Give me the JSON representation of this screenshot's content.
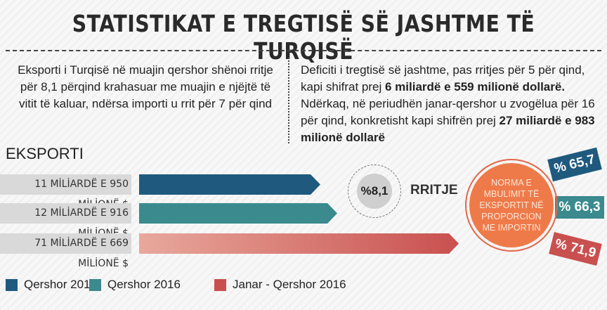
{
  "title": "STATISTIKAT E TREGTISË SË JASHTME TË TURQISË",
  "left_text": "Eksporti i Turqisë në muajin qershor shënoi rritje për 8,1 përqind krahasuar me muajin e njëjtë të vitit të kaluar, ndërsa importi u rrit për 7 për qind",
  "right_text": {
    "p1": "Deficiti i tregtisë së jashtme, pas rritjes për 5 për qind, kapi shifrat prej ",
    "b1": "6 miliardë e 559 milionë dollarë.",
    "p2": " Ndërkaq, në periudhën janar-qershor u zvogëlua për 16 për qind, konkretisht kapi shifrën prej ",
    "b2": "27 miliardë e 983 milionë dollarë"
  },
  "chart_data": {
    "type": "bar",
    "title": "EKSPORTI",
    "categories": [
      "Qershor 2015",
      "Qershor 2016",
      "Janar - Qershor 2016"
    ],
    "values": [
      11.95,
      12.916,
      71.669
    ],
    "units": "miliardë $",
    "value_labels": [
      "11 MİLİARDË E 950 MİLİONË $",
      "12 MİLİARDË E 916 MİLİONË $",
      "71 MİLİARDË E 669 MİLİONË $"
    ],
    "colors": [
      "#1f5a7e",
      "#3a8a8e",
      "#c9504f"
    ],
    "growth": {
      "value": "%8,1",
      "label": "RRITJE"
    },
    "coverage": {
      "label_lines": [
        "NORMA E",
        "MBULIMIT TË",
        "EKSPORTIT NË",
        "PROPORCION",
        "ME IMPORTIN"
      ],
      "values": [
        "% 65,7",
        "% 66,3",
        "% 71,9"
      ]
    }
  },
  "legend": [
    "Qershor 2015",
    "Qershor 2016",
    "Janar - Qershor 2016"
  ]
}
